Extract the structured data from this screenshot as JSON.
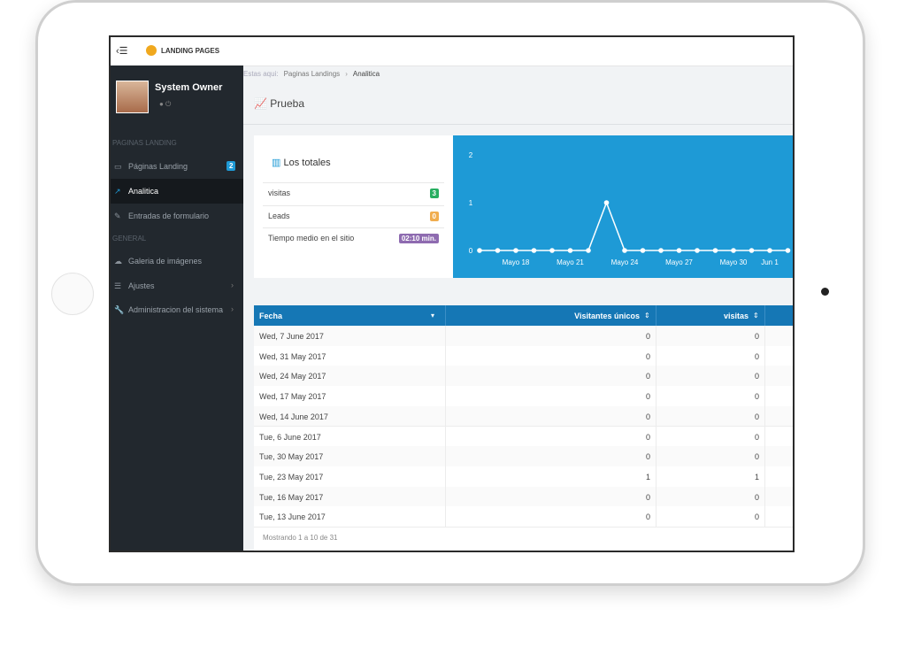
{
  "topbar": {
    "title": "LANDING PAGES"
  },
  "sidebar": {
    "user": "System Owner",
    "sections": [
      {
        "heading": "PAGINAS LANDING",
        "items": [
          {
            "label": "Páginas Landing",
            "badge": 2
          },
          {
            "label": "Analitica"
          },
          {
            "label": "Entradas de formulario"
          }
        ]
      },
      {
        "heading": "GENERAL",
        "items": [
          {
            "label": "Galeria de imágenes"
          },
          {
            "label": "Ajustes"
          },
          {
            "label": "Administracion del sistema"
          }
        ]
      }
    ]
  },
  "breadcrumb": [
    "Estas aqui:",
    "Paginas Landings",
    "Analitica"
  ],
  "page_title": "Prueba",
  "totals": {
    "title": "Los totales",
    "rows": [
      {
        "label": "visitas",
        "value": 3
      },
      {
        "label": "Leads",
        "value": 0
      },
      {
        "label": "Tiempo medio en el sitio",
        "value": "02:10 min."
      }
    ]
  },
  "chart": {
    "type": "line",
    "color": "#ffffff",
    "categories": [
      null,
      null,
      "Mayo 18",
      null,
      null,
      "Mayo 21",
      null,
      null,
      "Mayo 24",
      null,
      null,
      "Mayo 27",
      null,
      null,
      "Mayo 30",
      null,
      "Jun 1",
      null
    ],
    "values": [
      0,
      0,
      0,
      0,
      0,
      0,
      0,
      1,
      0,
      0,
      0,
      0,
      0,
      0,
      0,
      0,
      0,
      0
    ],
    "ylim": [
      0,
      2
    ],
    "yticks": [
      0,
      1,
      2
    ]
  },
  "table": {
    "columns": [
      "Fecha",
      "Visitantes únicos",
      "visitas"
    ],
    "rows": [
      [
        "Wed, 7 June 2017",
        0,
        0
      ],
      [
        "Wed, 31 May 2017",
        0,
        0
      ],
      [
        "Wed, 24 May 2017",
        0,
        0
      ],
      [
        "Wed, 17 May 2017",
        0,
        0
      ],
      [
        "Wed, 14 June 2017",
        0,
        0
      ],
      [
        "Tue, 6 June 2017",
        0,
        0
      ],
      [
        "Tue, 30 May 2017",
        0,
        0
      ],
      [
        "Tue, 23 May 2017",
        1,
        1
      ],
      [
        "Tue, 16 May 2017",
        0,
        0
      ],
      [
        "Tue, 13 June 2017",
        0,
        0
      ]
    ],
    "footer": "Mostrando 1 a 10 de 31"
  }
}
